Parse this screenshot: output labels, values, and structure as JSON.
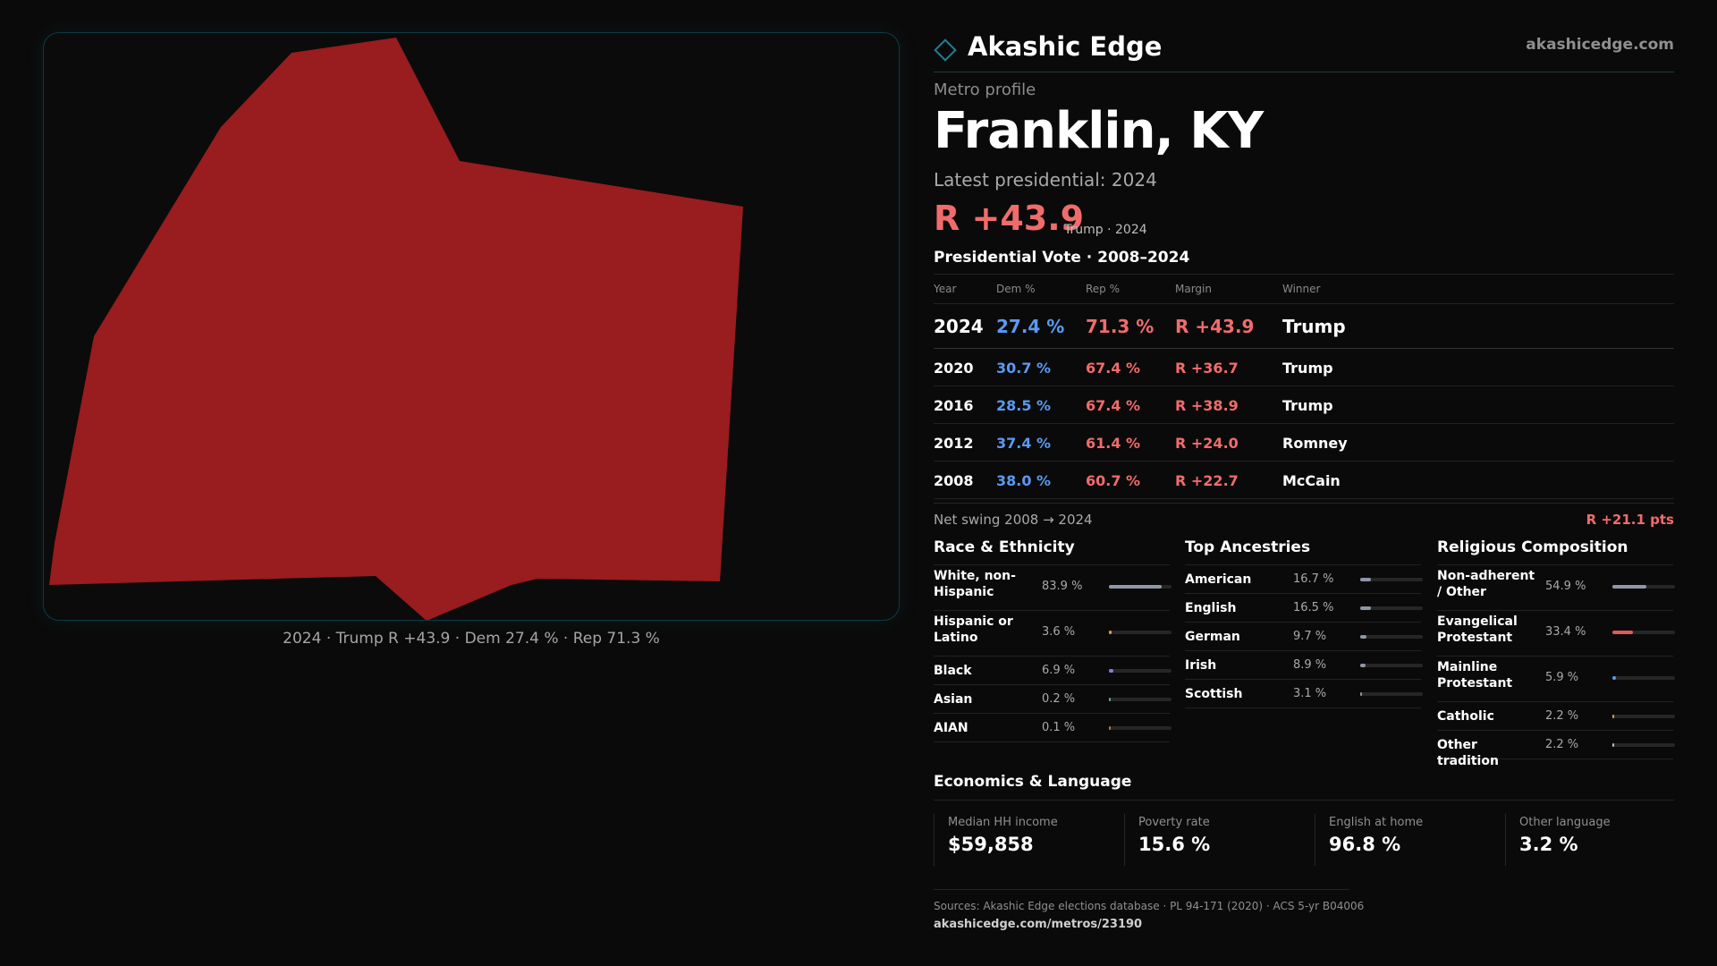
{
  "map": {
    "fill_color": "#991c1e",
    "caption": "2024 · Trump R +43.9 · Dem 27.4 % · Rep 71.3 %"
  },
  "header": {
    "brand_name": "Akashic Edge",
    "site_url": "akashicedge.com",
    "logo_icon": "diamond-icon"
  },
  "profile": {
    "kicker": "Metro profile",
    "title": "Franklin, KY",
    "latest_label": "Latest presidential: 2024",
    "latest_margin": "R +43.9",
    "latest_sub": "Trump · 2024"
  },
  "vote_table": {
    "title": "Presidential Vote · 2008–2024",
    "headers": [
      "Year",
      "Dem %",
      "Rep %",
      "Margin",
      "Winner"
    ],
    "rows": [
      {
        "year": "2024",
        "dem": "27.4 %",
        "rep": "71.3 %",
        "margin": "R +43.9",
        "winner": "Trump"
      },
      {
        "year": "2020",
        "dem": "30.7 %",
        "rep": "67.4 %",
        "margin": "R +36.7",
        "winner": "Trump"
      },
      {
        "year": "2016",
        "dem": "28.5 %",
        "rep": "67.4 %",
        "margin": "R +38.9",
        "winner": "Trump"
      },
      {
        "year": "2012",
        "dem": "37.4 %",
        "rep": "61.4 %",
        "margin": "R +24.0",
        "winner": "Romney"
      },
      {
        "year": "2008",
        "dem": "38.0 %",
        "rep": "60.7 %",
        "margin": "R +22.7",
        "winner": "McCain"
      }
    ],
    "swing_label": "Net swing 2008 → 2024",
    "swing_value": "R +21.1 pts"
  },
  "race": {
    "title": "Race & Ethnicity",
    "items": [
      {
        "label": "White, non-Hispanic",
        "value": "83.9 %",
        "pct": 83.9,
        "color": "#8e97a8"
      },
      {
        "label": "Hispanic or Latino",
        "value": "3.6 %",
        "pct": 3.6,
        "color": "#e0a040"
      },
      {
        "label": "Black",
        "value": "6.9 %",
        "pct": 6.9,
        "color": "#8a7ae0"
      },
      {
        "label": "Asian",
        "value": "0.2 %",
        "pct": 0.2,
        "color": "#4fb0a0"
      },
      {
        "label": "AIAN",
        "value": "0.1 %",
        "pct": 0.1,
        "color": "#c07050"
      }
    ]
  },
  "ancestry": {
    "title": "Top Ancestries",
    "items": [
      {
        "label": "American",
        "value": "16.7 %",
        "pct": 16.7,
        "color": "#8e97a8"
      },
      {
        "label": "English",
        "value": "16.5 %",
        "pct": 16.5,
        "color": "#8e97a8"
      },
      {
        "label": "German",
        "value": "9.7 %",
        "pct": 9.7,
        "color": "#8e97a8"
      },
      {
        "label": "Irish",
        "value": "8.9 %",
        "pct": 8.9,
        "color": "#8e97a8"
      },
      {
        "label": "Scottish",
        "value": "3.1 %",
        "pct": 3.1,
        "color": "#8e97a8"
      }
    ]
  },
  "religion": {
    "title": "Religious Composition",
    "items": [
      {
        "label": "Non-adherent / Other",
        "value": "54.9 %",
        "pct": 54.9,
        "color": "#8e97a8"
      },
      {
        "label": "Evangelical Protestant",
        "value": "33.4 %",
        "pct": 33.4,
        "color": "#e05a5a"
      },
      {
        "label": "Mainline Protestant",
        "value": "5.9 %",
        "pct": 5.9,
        "color": "#5a9af2"
      },
      {
        "label": "Catholic",
        "value": "2.2 %",
        "pct": 2.2,
        "color": "#e0a040"
      },
      {
        "label": "Other tradition",
        "value": "2.2 %",
        "pct": 2.2,
        "color": "#bdbdbd"
      }
    ]
  },
  "economics": {
    "title": "Economics & Language",
    "stats": [
      {
        "label": "Median HH income",
        "value": "$59,858"
      },
      {
        "label": "Poverty rate",
        "value": "15.6 %"
      },
      {
        "label": "English at home",
        "value": "96.8 %"
      },
      {
        "label": "Other language",
        "value": "3.2 %"
      }
    ]
  },
  "footer": {
    "sources": "Sources: Akashic Edge elections database · PL 94-171 (2020) · ACS 5-yr B04006",
    "metro_url": "akashicedge.com/metros/23190"
  }
}
